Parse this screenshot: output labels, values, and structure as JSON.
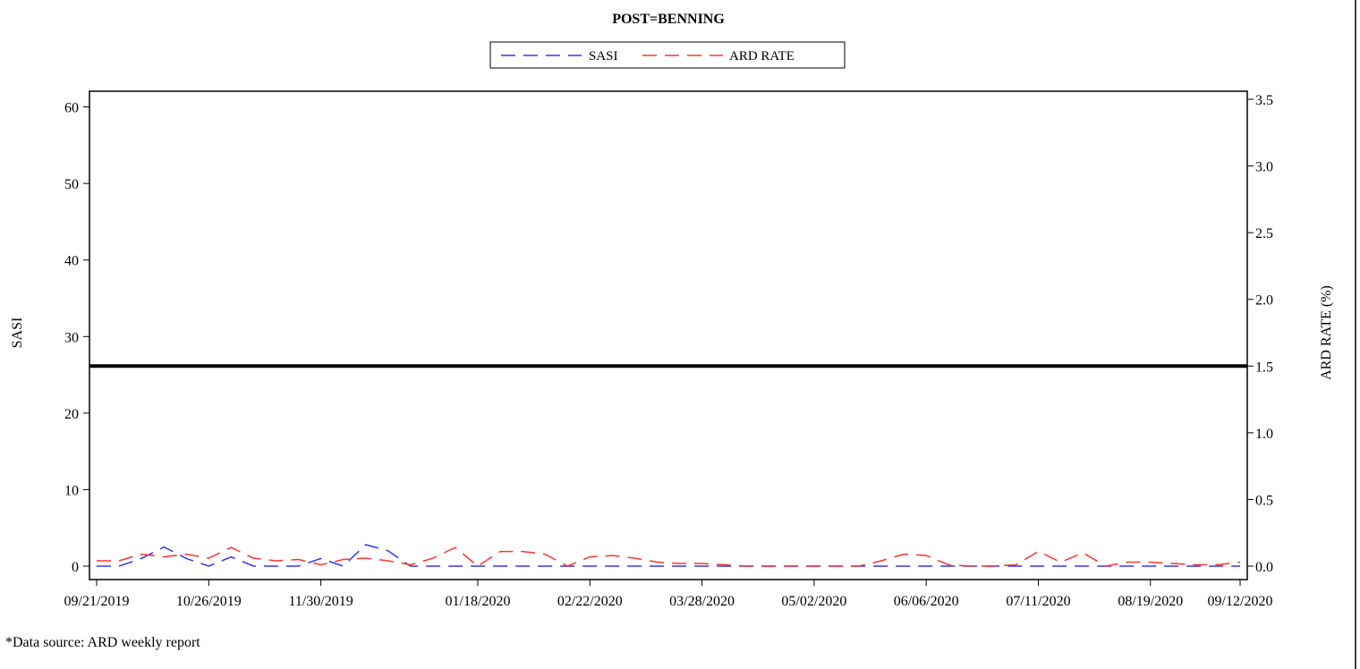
{
  "chart_data": {
    "type": "line",
    "title": "POST=BENNING",
    "ylabel": "SASI",
    "y2label": "ARD RATE (%)",
    "ylim": [
      0,
      61
    ],
    "y2lim": [
      0,
      3.5
    ],
    "yticks": [
      0,
      10,
      20,
      30,
      40,
      50,
      60
    ],
    "y2ticks": [
      "0.0",
      "0.5",
      "1.0",
      "1.5",
      "2.0",
      "2.5",
      "3.0",
      "3.5"
    ],
    "x_tick_labels": [
      "09/21/2019",
      "10/26/2019",
      "11/30/2019",
      "01/18/2020",
      "02/22/2020",
      "03/28/2020",
      "05/02/2020",
      "06/06/2020",
      "07/11/2020",
      "08/19/2020",
      "09/12/2020"
    ],
    "x_tick_weeks": [
      0,
      5,
      10,
      17,
      22,
      27,
      32,
      37,
      42,
      47,
      51
    ],
    "n_weeks": 51,
    "threshold": {
      "axis": "y2",
      "value": 1.5
    },
    "legend_position": "top-center",
    "series": [
      {
        "name": "SASI",
        "axis": "y",
        "color": "#3333ff",
        "style": "dashed",
        "values": [
          0,
          0,
          1,
          2.5,
          1,
          0,
          1.2,
          0,
          0,
          0,
          1,
          0,
          2.8,
          2,
          0,
          0,
          0,
          0,
          0,
          0,
          0,
          0,
          0,
          0,
          0,
          0,
          0,
          0,
          0,
          0,
          0,
          0,
          0,
          0,
          0,
          0,
          0,
          0,
          0,
          0,
          0,
          0,
          0,
          0,
          0,
          0,
          0,
          0,
          0,
          0,
          0,
          0
        ]
      },
      {
        "name": "ARD RATE",
        "axis": "y2",
        "color": "#ff3333",
        "style": "dashed",
        "values": [
          0.04,
          0.04,
          0.09,
          0.07,
          0.09,
          0.06,
          0.14,
          0.06,
          0.04,
          0.05,
          0.01,
          0.05,
          0.06,
          0.04,
          0.01,
          0.06,
          0.14,
          0.0,
          0.11,
          0.11,
          0.09,
          0.0,
          0.07,
          0.08,
          0.06,
          0.03,
          0.02,
          0.02,
          0.01,
          0.0,
          0.0,
          0.0,
          0.0,
          0.0,
          0.0,
          0.04,
          0.09,
          0.08,
          0.01,
          0.0,
          0.0,
          0.01,
          0.11,
          0.03,
          0.1,
          0.0,
          0.03,
          0.03,
          0.02,
          0.01,
          0.01,
          0.03
        ]
      }
    ]
  },
  "footnote": "*Data source: ARD weekly report"
}
